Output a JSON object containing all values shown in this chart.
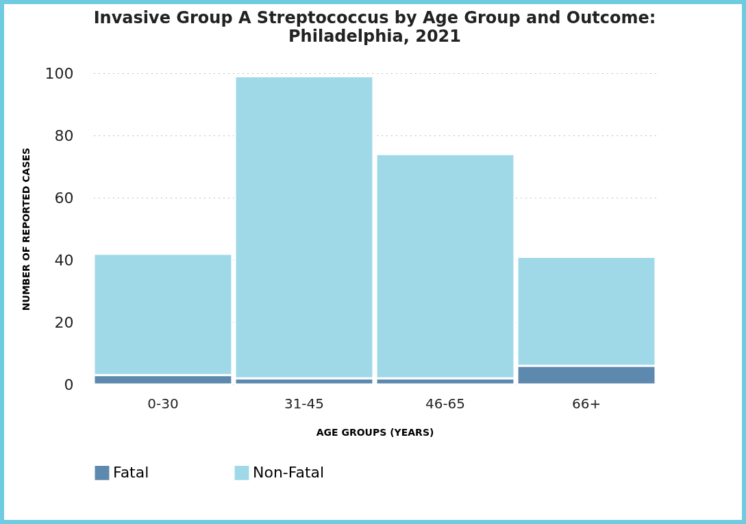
{
  "chart_data": {
    "type": "bar",
    "title": "Invasive Group A Streptococcus by Age Group and Outcome:",
    "subtitle": "Philadelphia, 2021",
    "xlabel": "AGE GROUPS (YEARS)",
    "ylabel": "NUMBER OF REPORTED CASES",
    "categories": [
      "0-30",
      "31-45",
      "46-65",
      "66+"
    ],
    "stacked": true,
    "series": [
      {
        "name": "Fatal",
        "color": "#5d89ae",
        "values": [
          3,
          2,
          2,
          6
        ]
      },
      {
        "name": "Non-Fatal",
        "color": "#9fd9e8",
        "values": [
          39,
          97,
          72,
          35
        ]
      }
    ],
    "ylim": [
      0,
      100
    ],
    "yticks": [
      0,
      20,
      40,
      60,
      80,
      100
    ],
    "grid": "y",
    "legend": "bottom"
  }
}
